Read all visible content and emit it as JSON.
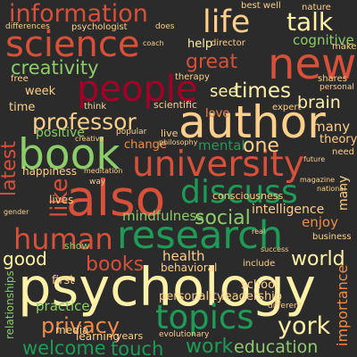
{
  "colors": {
    "background": "#2b2b2b",
    "red": "#d7503a",
    "dark_red": "#a50026",
    "orange": "#f08c49",
    "peach": "#fdcf8a",
    "cream": "#fff2a8",
    "light_green": "#8ccc6a",
    "green": "#1e9c57",
    "dark_green": "#0f7a3c"
  },
  "words": [
    {
      "id": "information",
      "text": "information"
    },
    {
      "id": "life",
      "text": "life"
    },
    {
      "id": "talk",
      "text": "talk"
    },
    {
      "id": "science",
      "text": "science"
    },
    {
      "id": "new",
      "text": "new"
    },
    {
      "id": "creativity",
      "text": "creativity"
    },
    {
      "id": "great",
      "text": "great"
    },
    {
      "id": "people",
      "text": "people"
    },
    {
      "id": "times",
      "text": "times"
    },
    {
      "id": "author",
      "text": "author"
    },
    {
      "id": "professor",
      "text": "professor"
    },
    {
      "id": "book",
      "text": "book"
    },
    {
      "id": "university",
      "text": "university"
    },
    {
      "id": "one",
      "text": "one"
    },
    {
      "id": "also",
      "text": "also"
    },
    {
      "id": "discuss",
      "text": "discuss"
    },
    {
      "id": "human",
      "text": "human"
    },
    {
      "id": "research",
      "text": "research"
    },
    {
      "id": "social",
      "text": "social"
    },
    {
      "id": "world",
      "text": "world"
    },
    {
      "id": "books",
      "text": "books"
    },
    {
      "id": "psychology",
      "text": "psychology"
    },
    {
      "id": "topics",
      "text": "topics"
    },
    {
      "id": "york",
      "text": "york"
    },
    {
      "id": "privacy",
      "text": "privacy"
    },
    {
      "id": "welcome",
      "text": "welcome"
    },
    {
      "id": "touch",
      "text": "touch"
    },
    {
      "id": "work",
      "text": "work"
    },
    {
      "id": "education",
      "text": "education"
    },
    {
      "id": "good",
      "text": "good"
    },
    {
      "id": "latest",
      "text": "latest"
    },
    {
      "id": "like",
      "text": "like"
    },
    {
      "id": "brain",
      "text": "brain"
    },
    {
      "id": "mental",
      "text": "mental"
    },
    {
      "id": "cognitive",
      "text": "cognitive"
    },
    {
      "id": "help",
      "text": "help"
    },
    {
      "id": "see",
      "text": "see"
    },
    {
      "id": "positive",
      "text": "positive"
    },
    {
      "id": "mindfulness",
      "text": "mindfulness"
    },
    {
      "id": "intelligence",
      "text": "intelligence"
    },
    {
      "id": "happiness",
      "text": "happiness"
    },
    {
      "id": "health",
      "text": "health"
    },
    {
      "id": "school",
      "text": "school"
    },
    {
      "id": "practice",
      "text": "practice"
    },
    {
      "id": "leadership",
      "text": "leadership"
    },
    {
      "id": "personality",
      "text": "personality"
    },
    {
      "id": "theory",
      "text": "theory"
    },
    {
      "id": "many",
      "text": "many"
    },
    {
      "id": "change",
      "text": "change"
    },
    {
      "id": "week",
      "text": "week"
    },
    {
      "id": "time",
      "text": "time"
    },
    {
      "id": "enjoy",
      "text": "enjoy"
    },
    {
      "id": "consciousness",
      "text": "consciousness"
    },
    {
      "id": "behavioral",
      "text": "behavioral"
    },
    {
      "id": "first",
      "text": "first"
    },
    {
      "id": "lives",
      "text": "lives"
    },
    {
      "id": "learning",
      "text": "learning"
    },
    {
      "id": "media",
      "text": "media"
    },
    {
      "id": "years",
      "text": "years"
    },
    {
      "id": "relationships",
      "text": "relationships"
    },
    {
      "id": "importance",
      "text": "importance"
    },
    {
      "id": "love",
      "text": "love"
    },
    {
      "id": "free",
      "text": "free"
    },
    {
      "id": "coach",
      "text": "coach"
    },
    {
      "id": "director",
      "text": "director"
    },
    {
      "id": "make",
      "text": "make"
    },
    {
      "id": "nature",
      "text": "nature"
    },
    {
      "id": "best",
      "text": "best well"
    },
    {
      "id": "psychologist",
      "text": "psychologist"
    },
    {
      "id": "differences",
      "text": "differences"
    },
    {
      "id": "does",
      "text": "does"
    },
    {
      "id": "therapy",
      "text": "therapy"
    },
    {
      "id": "think",
      "text": "think"
    },
    {
      "id": "shares",
      "text": "shares"
    },
    {
      "id": "expert",
      "text": "expert"
    },
    {
      "id": "personal",
      "text": "personal"
    },
    {
      "id": "scientific",
      "text": "scientific"
    },
    {
      "id": "live",
      "text": "live"
    },
    {
      "id": "need",
      "text": "need"
    },
    {
      "id": "business",
      "text": "business"
    },
    {
      "id": "include",
      "text": "include"
    },
    {
      "id": "different",
      "text": "different"
    },
    {
      "id": "evolutionary",
      "text": "evolutionary"
    },
    {
      "id": "show",
      "text": "show"
    },
    {
      "id": "gender",
      "text": "gender"
    },
    {
      "id": "national",
      "text": "national"
    },
    {
      "id": "popular",
      "text": "popular"
    },
    {
      "id": "way",
      "text": "way"
    },
    {
      "id": "philosophy",
      "text": "philosophy"
    },
    {
      "id": "way2",
      "text": "way"
    },
    {
      "id": "success",
      "text": "success"
    },
    {
      "id": "real",
      "text": "real"
    },
    {
      "id": "future",
      "text": "future"
    },
    {
      "id": "creative",
      "text": "creative"
    },
    {
      "id": "magazine",
      "text": "magazine"
    },
    {
      "id": "meditation",
      "text": "meditation"
    }
  ]
}
